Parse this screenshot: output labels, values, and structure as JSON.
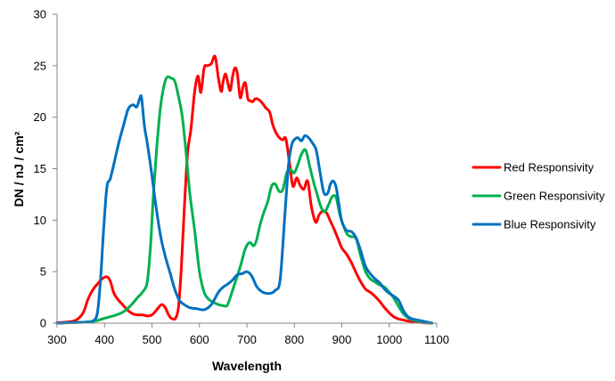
{
  "chart_data": {
    "type": "line",
    "xlabel": "Wavelength",
    "ylabel": "DN / nJ / cm²",
    "xlim": [
      300,
      1100
    ],
    "ylim": [
      0,
      30
    ],
    "x_ticks": [
      "300",
      "400",
      "500",
      "600",
      "700",
      "800",
      "900",
      "1000",
      "1100"
    ],
    "y_ticks": [
      "0",
      "5",
      "10",
      "15",
      "20",
      "25",
      "30"
    ],
    "grid": false,
    "legend_position": "right",
    "series": [
      {
        "name": "Red Responsivity",
        "color": "#ff0000",
        "x": [
          300,
          320,
          340,
          355,
          365,
          375,
          385,
          395,
          405,
          412,
          420,
          430,
          440,
          450,
          460,
          470,
          480,
          490,
          500,
          510,
          520,
          528,
          535,
          540,
          545,
          550,
          556,
          562,
          568,
          575,
          582,
          590,
          597,
          603,
          610,
          617,
          625,
          633,
          640,
          646,
          650,
          655,
          660,
          665,
          670,
          675,
          680,
          686,
          692,
          697,
          702,
          707,
          712,
          718,
          725,
          732,
          740,
          748,
          755,
          765,
          775,
          782,
          790,
          797,
          805,
          812,
          820,
          828,
          836,
          845,
          852,
          860,
          868,
          876,
          884,
          892,
          900,
          910,
          920,
          930,
          940,
          950,
          960,
          970,
          980,
          990,
          1000,
          1010,
          1020,
          1030,
          1040,
          1050,
          1060,
          1070,
          1080,
          1090
        ],
        "y": [
          0.05,
          0.1,
          0.3,
          1.0,
          2.3,
          3.2,
          3.8,
          4.3,
          4.5,
          4.1,
          2.9,
          2.2,
          1.7,
          1.2,
          0.9,
          0.8,
          0.8,
          0.7,
          0.8,
          1.3,
          1.8,
          1.5,
          0.8,
          0.5,
          0.4,
          0.5,
          1.6,
          5.5,
          11,
          16.5,
          18.8,
          22.5,
          24.0,
          22.4,
          24.8,
          25.0,
          25.2,
          25.9,
          23.8,
          22.5,
          23.5,
          24.2,
          23.3,
          22.6,
          24.0,
          24.8,
          24.2,
          21.9,
          23.0,
          23.3,
          21.8,
          21.6,
          21.5,
          21.8,
          21.7,
          21.4,
          20.9,
          20.5,
          19.2,
          18.2,
          17.8,
          17.9,
          15.5,
          13.3,
          14.1,
          13.4,
          13.0,
          13.8,
          11.3,
          9.8,
          10.5,
          10.9,
          10.7,
          9.9,
          9.1,
          8.2,
          7.3,
          6.7,
          5.9,
          4.9,
          4.0,
          3.3,
          3.0,
          2.6,
          2.1,
          1.5,
          1.0,
          0.6,
          0.4,
          0.3,
          0.2,
          0.15,
          0.1,
          0.05,
          0.02,
          0.0
        ]
      },
      {
        "name": "Green Responsivity",
        "color": "#00b050",
        "x": [
          300,
          330,
          360,
          380,
          395,
          410,
          425,
          440,
          455,
          470,
          480,
          490,
          497,
          503,
          510,
          518,
          526,
          532,
          540,
          548,
          556,
          564,
          572,
          580,
          590,
          600,
          610,
          620,
          630,
          640,
          650,
          658,
          665,
          672,
          680,
          688,
          695,
          702,
          708,
          714,
          720,
          728,
          736,
          744,
          752,
          760,
          768,
          776,
          784,
          792,
          800,
          808,
          816,
          824,
          832,
          840,
          848,
          856,
          864,
          872,
          880,
          888,
          896,
          904,
          912,
          920,
          930,
          940,
          950,
          960,
          970,
          980,
          990,
          1000,
          1010,
          1020,
          1030,
          1040,
          1050,
          1060,
          1070,
          1080,
          1090
        ],
        "y": [
          0.0,
          0.05,
          0.1,
          0.2,
          0.4,
          0.6,
          0.8,
          1.1,
          1.7,
          2.5,
          3.0,
          4.0,
          7.5,
          12.5,
          17.0,
          21.0,
          23.2,
          23.9,
          23.8,
          23.5,
          22.0,
          20.0,
          16.5,
          12.5,
          9.0,
          5.0,
          3.0,
          2.3,
          2.0,
          1.8,
          1.7,
          1.7,
          2.5,
          3.5,
          4.6,
          5.8,
          7.0,
          7.7,
          7.8,
          7.5,
          8.0,
          9.6,
          10.8,
          11.8,
          13.3,
          13.5,
          12.8,
          13.0,
          14.6,
          14.9,
          14.6,
          15.5,
          16.5,
          16.8,
          15.3,
          13.8,
          12.5,
          11.3,
          10.8,
          11.5,
          12.3,
          12.2,
          10.5,
          9.4,
          8.6,
          8.4,
          8.2,
          6.5,
          5.0,
          4.3,
          4.0,
          3.7,
          3.5,
          3.0,
          2.4,
          1.6,
          0.9,
          0.5,
          0.3,
          0.2,
          0.1,
          0.05,
          0.0
        ]
      },
      {
        "name": "Blue Responsivity",
        "color": "#0070c0",
        "x": [
          300,
          330,
          360,
          375,
          385,
          392,
          398,
          405,
          412,
          420,
          430,
          440,
          450,
          460,
          468,
          474,
          478,
          484,
          490,
          498,
          508,
          518,
          528,
          538,
          548,
          558,
          568,
          580,
          595,
          610,
          625,
          640,
          650,
          660,
          670,
          680,
          690,
          700,
          710,
          720,
          730,
          740,
          750,
          760,
          770,
          780,
          788,
          795,
          802,
          808,
          815,
          822,
          830,
          838,
          846,
          854,
          862,
          870,
          876,
          882,
          888,
          894,
          900,
          910,
          920,
          930,
          940,
          950,
          960,
          970,
          980,
          990,
          1000,
          1010,
          1020,
          1030,
          1040,
          1050,
          1060,
          1070,
          1080,
          1090
        ],
        "y": [
          0.0,
          0.05,
          0.1,
          0.2,
          1.0,
          4.5,
          9.0,
          13.2,
          14.0,
          15.5,
          17.5,
          19.2,
          20.8,
          21.2,
          21.0,
          21.8,
          21.9,
          19.2,
          17.5,
          15.0,
          11.5,
          8.5,
          6.5,
          4.9,
          3.3,
          2.2,
          1.8,
          1.5,
          1.4,
          1.3,
          1.8,
          3.0,
          3.5,
          3.8,
          4.2,
          4.7,
          4.8,
          5.0,
          4.6,
          3.6,
          3.1,
          2.9,
          2.9,
          3.2,
          4.2,
          10.5,
          15.5,
          17.4,
          17.9,
          18.0,
          17.7,
          18.2,
          18.0,
          17.5,
          16.8,
          14.7,
          12.7,
          12.6,
          13.5,
          13.8,
          13.2,
          11.5,
          9.9,
          9.0,
          8.9,
          8.3,
          7.0,
          5.5,
          4.8,
          4.3,
          3.9,
          3.3,
          2.9,
          2.6,
          2.2,
          1.2,
          0.6,
          0.4,
          0.3,
          0.2,
          0.1,
          0.0
        ]
      }
    ]
  }
}
